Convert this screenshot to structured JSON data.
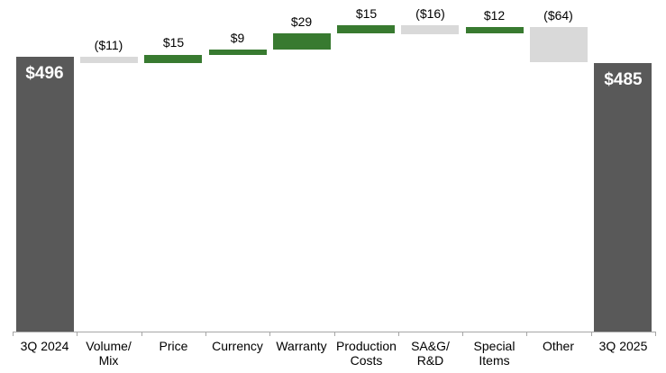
{
  "chart_data": {
    "type": "waterfall",
    "title": "",
    "categories": [
      "3Q 2024",
      "Volume/\nMix",
      "Price",
      "Currency",
      "Warranty",
      "Production\nCosts",
      "SA&G/\nR&D",
      "Special\nItems",
      "Other",
      "3Q 2025"
    ],
    "values": [
      496,
      -11,
      15,
      9,
      29,
      15,
      -16,
      12,
      -64,
      485
    ],
    "labels": [
      "$496",
      "($11)",
      "$15",
      "$9",
      "$29",
      "$15",
      "($16)",
      "$12",
      "($64)",
      "$485"
    ],
    "roles": [
      "total",
      "decrease",
      "increase",
      "increase",
      "increase",
      "increase",
      "decrease",
      "increase",
      "decrease",
      "total"
    ],
    "start_total": 496,
    "end_total": 485,
    "running_totals": [
      496,
      485,
      500,
      509,
      538,
      553,
      537,
      549,
      485,
      485
    ],
    "ylim": [
      0,
      595
    ],
    "grid": false,
    "legend": false,
    "colors": {
      "total": "#595959",
      "increase": "#387A30",
      "decrease": "#D9D9D9",
      "axis": "#A6A6A6",
      "value_label": "#000000",
      "total_label": "#FFFFFF",
      "background": "#FFFFFF"
    }
  }
}
